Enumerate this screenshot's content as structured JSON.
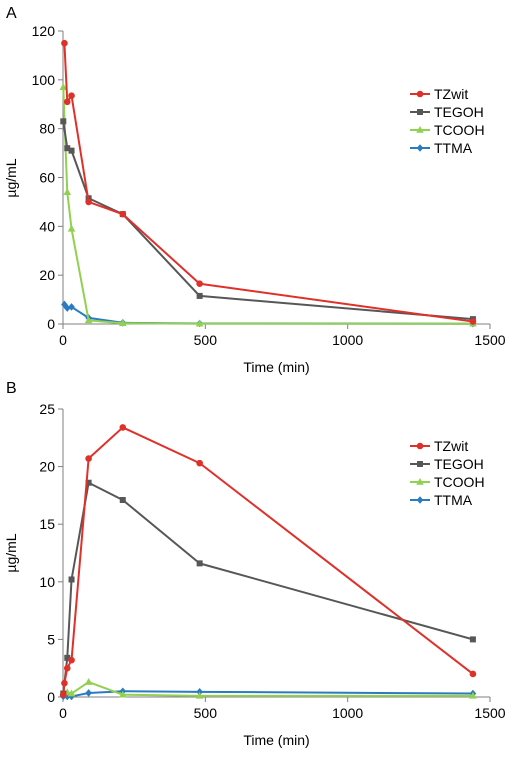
{
  "colors": {
    "axis": "#7f7f7f",
    "TZwit": "#e0302a",
    "TEGOH": "#575757",
    "TCOOH": "#92d050",
    "TTMA": "#2b7bc0"
  },
  "chart_data": [
    {
      "panel_label": "A",
      "type": "line",
      "xlabel": "Time (min)",
      "ylabel": "µg/mL",
      "xlim": [
        0,
        1500
      ],
      "ylim": [
        0,
        120
      ],
      "xticks": [
        0,
        500,
        1000,
        1500
      ],
      "yticks": [
        0,
        20,
        40,
        60,
        80,
        100,
        120
      ],
      "grid": false,
      "legend_position": "top-right",
      "series": [
        {
          "name": "TZwit",
          "marker": "circle",
          "x": [
            5,
            15,
            30,
            90,
            210,
            480,
            1440
          ],
          "y": [
            115,
            91,
            93.5,
            50,
            45,
            16.5,
            1
          ]
        },
        {
          "name": "TEGOH",
          "marker": "square",
          "x": [
            1,
            15,
            30,
            90,
            210,
            480,
            1440
          ],
          "y": [
            83,
            72,
            71,
            51.5,
            45,
            11.5,
            2
          ]
        },
        {
          "name": "TCOOH",
          "marker": "triangle",
          "x": [
            1,
            15,
            30,
            90,
            210,
            480,
            1440
          ],
          "y": [
            97,
            54,
            39,
            1.5,
            0.3,
            0.1,
            0.1
          ]
        },
        {
          "name": "TTMA",
          "marker": "diamond",
          "x": [
            5,
            15,
            30,
            90,
            210,
            480,
            1440
          ],
          "y": [
            8,
            6.5,
            7,
            2.5,
            0.5,
            0.2,
            0.1
          ]
        }
      ]
    },
    {
      "panel_label": "B",
      "type": "line",
      "xlabel": "Time (min)",
      "ylabel": "µg/mL",
      "xlim": [
        0,
        1500
      ],
      "ylim": [
        0,
        25
      ],
      "xticks": [
        0,
        500,
        1000,
        1500
      ],
      "yticks": [
        0,
        5,
        10,
        15,
        20,
        25
      ],
      "grid": false,
      "legend_position": "top-right",
      "series": [
        {
          "name": "TZwit",
          "marker": "circle",
          "x": [
            1,
            5,
            15,
            30,
            90,
            210,
            480,
            1440
          ],
          "y": [
            0.2,
            1.2,
            2.5,
            3.2,
            20.7,
            23.4,
            20.3,
            2
          ]
        },
        {
          "name": "TEGOH",
          "marker": "square",
          "x": [
            1,
            15,
            30,
            90,
            210,
            480,
            1440
          ],
          "y": [
            0.3,
            3.4,
            10.2,
            18.6,
            17.1,
            11.6,
            5
          ]
        },
        {
          "name": "TCOOH",
          "marker": "triangle",
          "x": [
            1,
            15,
            30,
            90,
            210,
            480,
            1440
          ],
          "y": [
            0.3,
            0.4,
            0.3,
            1.3,
            0.2,
            0.1,
            0.1
          ]
        },
        {
          "name": "TTMA",
          "marker": "diamond",
          "x": [
            1,
            15,
            30,
            90,
            210,
            480,
            1440
          ],
          "y": [
            0.05,
            0.05,
            0.05,
            0.35,
            0.5,
            0.45,
            0.3
          ]
        }
      ]
    }
  ]
}
